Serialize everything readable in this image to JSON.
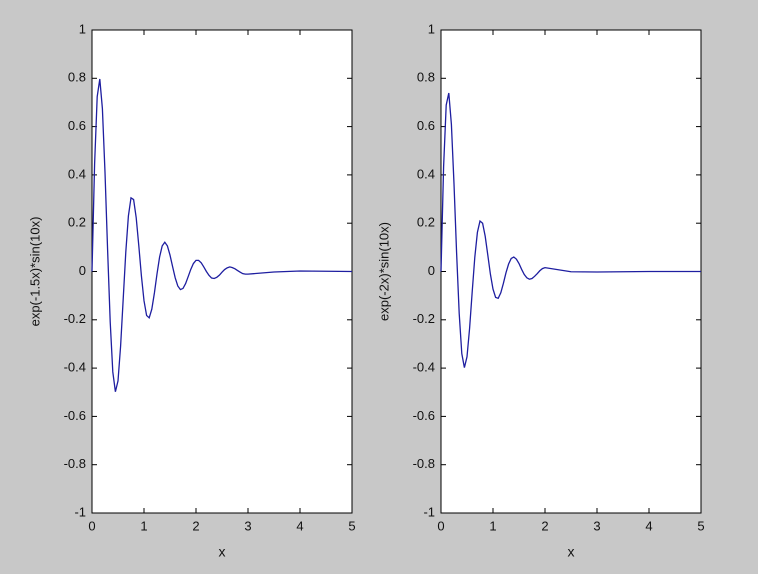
{
  "chart_data": [
    {
      "type": "line",
      "xlabel": "x",
      "ylabel": "exp(-1.5x)*sin(10x)",
      "x": [
        0,
        0.05,
        0.1,
        0.15,
        0.2,
        0.25,
        0.3,
        0.35,
        0.4,
        0.45,
        0.5,
        0.55,
        0.6,
        0.65,
        0.7,
        0.75,
        0.8,
        0.85,
        0.9,
        0.95,
        1,
        1.05,
        1.1,
        1.15,
        1.2,
        1.25,
        1.3,
        1.35,
        1.4,
        1.45,
        1.5,
        1.55,
        1.6,
        1.65,
        1.7,
        1.75,
        1.8,
        1.85,
        1.9,
        1.95,
        2,
        2.05,
        2.1,
        2.15,
        2.2,
        2.25,
        2.3,
        2.35,
        2.4,
        2.45,
        2.5,
        2.55,
        2.6,
        2.65,
        2.7,
        2.75,
        2.8,
        2.85,
        2.9,
        2.95,
        3,
        3.5,
        4,
        4.5,
        5
      ],
      "series": [
        {
          "color": "#1e1ea0",
          "values": [
            0,
            0.445,
            0.724,
            0.797,
            0.674,
            0.411,
            0.09,
            -0.208,
            -0.416,
            -0.498,
            -0.453,
            -0.309,
            -0.114,
            0.081,
            0.23,
            0.305,
            0.298,
            0.223,
            0.107,
            -0.018,
            -0.121,
            -0.182,
            -0.192,
            -0.156,
            -0.089,
            -0.01,
            0.06,
            0.106,
            0.121,
            0.106,
            0.068,
            0.02,
            -0.026,
            -0.06,
            -0.075,
            -0.07,
            -0.05,
            -0.021,
            0.009,
            0.033,
            0.046,
            0.046,
            0.036,
            0.019,
            0,
            -0.016,
            -0.027,
            -0.029,
            -0.024,
            -0.015,
            -0.003,
            0.008,
            0.015,
            0.019,
            0.016,
            0.011,
            0.004,
            -0.003,
            -0.009,
            -0.011,
            -0.011,
            -0.002,
            0.002,
            0.001,
            0
          ]
        }
      ],
      "xlim": [
        0,
        5
      ],
      "xticks": [
        0,
        1,
        2,
        3,
        4,
        5
      ],
      "ylim": [
        -1,
        1
      ],
      "yticks": [
        -1,
        -0.8,
        -0.6,
        -0.4,
        -0.2,
        0,
        0.2,
        0.4,
        0.6,
        0.8,
        1
      ]
    },
    {
      "type": "line",
      "xlabel": "x",
      "ylabel": "exp(-2x)*sin(10x)",
      "x": [
        0,
        0.05,
        0.1,
        0.15,
        0.2,
        0.25,
        0.3,
        0.35,
        0.4,
        0.45,
        0.5,
        0.55,
        0.6,
        0.65,
        0.7,
        0.75,
        0.8,
        0.85,
        0.9,
        0.95,
        1,
        1.05,
        1.1,
        1.15,
        1.2,
        1.25,
        1.3,
        1.35,
        1.4,
        1.45,
        1.5,
        1.55,
        1.6,
        1.65,
        1.7,
        1.75,
        1.8,
        1.85,
        1.9,
        1.95,
        2,
        2.5,
        3,
        4,
        5
      ],
      "series": [
        {
          "color": "#1e1ea0",
          "values": [
            0,
            0.434,
            0.689,
            0.739,
            0.609,
            0.363,
            0.077,
            -0.174,
            -0.34,
            -0.398,
            -0.353,
            -0.235,
            -0.084,
            0.059,
            0.162,
            0.209,
            0.2,
            0.146,
            0.068,
            -0.011,
            -0.073,
            -0.107,
            -0.111,
            -0.088,
            -0.049,
            -0.005,
            0.031,
            0.054,
            0.06,
            0.051,
            0.033,
            0.009,
            -0.012,
            -0.026,
            -0.032,
            -0.029,
            -0.02,
            -0.009,
            0.003,
            0.012,
            0.016,
            -0.001,
            -0.002,
            0,
            0
          ]
        }
      ],
      "xlim": [
        0,
        5
      ],
      "xticks": [
        0,
        1,
        2,
        3,
        4,
        5
      ],
      "ylim": [
        -1,
        1
      ],
      "yticks": [
        -1,
        -0.8,
        -0.6,
        -0.4,
        -0.2,
        0,
        0.2,
        0.4,
        0.6,
        0.8,
        1
      ]
    }
  ]
}
